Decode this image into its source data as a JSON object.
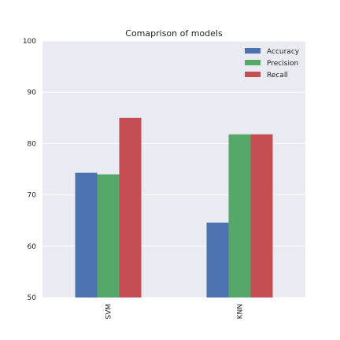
{
  "chart_data": {
    "type": "bar",
    "title": "Comaprison of models",
    "xlabel": "",
    "ylabel": "",
    "categories": [
      "SVM",
      "KNN"
    ],
    "series": [
      {
        "name": "Accuracy",
        "color": "#4c72b0",
        "values": [
          74.3,
          64.6
        ]
      },
      {
        "name": "Precision",
        "color": "#55a868",
        "values": [
          74.0,
          81.8
        ]
      },
      {
        "name": "Recall",
        "color": "#c44e52",
        "values": [
          85.0,
          81.8
        ]
      }
    ],
    "ylim": [
      50,
      100
    ],
    "yticks": [
      50,
      60,
      70,
      80,
      90,
      100
    ],
    "grid": true,
    "legend_position": "top-right"
  }
}
